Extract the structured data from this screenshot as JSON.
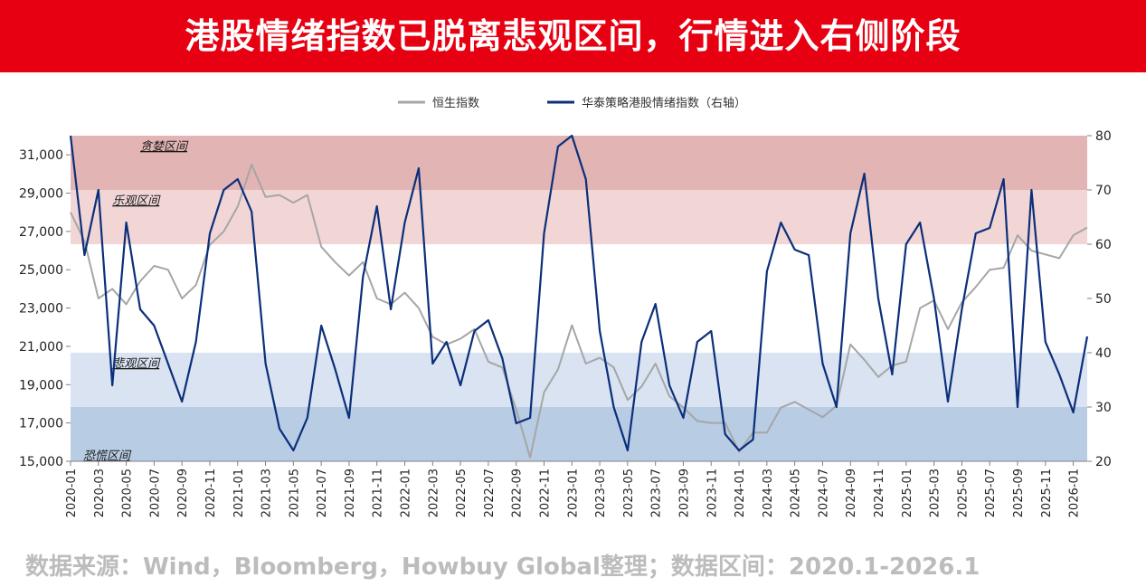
{
  "header": {
    "title": "港股情绪指数已脱离悲观区间，行情进入右侧阶段"
  },
  "footer": {
    "source": "数据来源：Wind，Bloomberg，Howbuy Global整理；数据区间：2020.1-2026.1"
  },
  "colors": {
    "banner": "#e60012",
    "hsi_line": "#a6a6a6",
    "sentiment_line": "#0b2f7a",
    "zone_greed": "#e3b4b4",
    "zone_optimism": "#f2d6d6",
    "zone_neutral": "#ffffff",
    "zone_pessimism": "#d9e3f1",
    "zone_panic": "#b8cce4"
  },
  "chart_data": {
    "type": "line",
    "title": "",
    "legend_position": "top-center",
    "x_type": "month",
    "xlim": [
      "2020-01",
      "2026-02"
    ],
    "x_tick_labels": [
      "2020-01",
      "2020-03",
      "2020-05",
      "2020-07",
      "2020-09",
      "2020-11",
      "2021-01",
      "2021-03",
      "2021-05",
      "2021-07",
      "2021-09",
      "2021-11",
      "2022-01",
      "2022-03",
      "2022-05",
      "2022-07",
      "2022-09",
      "2022-11",
      "2023-01",
      "2023-03",
      "2023-05",
      "2023-07",
      "2023-09",
      "2023-11",
      "2024-01",
      "2024-03",
      "2024-05",
      "2024-07",
      "2024-09",
      "2024-11",
      "2025-01",
      "2025-03",
      "2025-05",
      "2025-07",
      "2025-09",
      "2025-11",
      "2026-01"
    ],
    "y_left": {
      "ylim": [
        15000,
        32000
      ],
      "ticks": [
        15000,
        17000,
        19000,
        21000,
        23000,
        25000,
        27000,
        29000,
        31000
      ],
      "tick_labels": [
        "15,000",
        "17,000",
        "19,000",
        "21,000",
        "23,000",
        "25,000",
        "27,000",
        "29,000",
        "31,000"
      ]
    },
    "y_right": {
      "ylim": [
        20,
        80
      ],
      "ticks": [
        20,
        30,
        40,
        50,
        60,
        70,
        80
      ],
      "tick_labels": [
        "20",
        "30",
        "40",
        "50",
        "60",
        "70",
        "80"
      ]
    },
    "zones": [
      {
        "name": "贪婪区间",
        "from": 70,
        "to": 80
      },
      {
        "name": "乐观区间",
        "from": 60,
        "to": 70
      },
      {
        "name": "",
        "from": 40,
        "to": 60
      },
      {
        "name": "悲观区间",
        "from": 30,
        "to": 40
      },
      {
        "name": "恐慌区间",
        "from": 20,
        "to": 30
      }
    ],
    "zone_label_dates": [
      "2020-06",
      "2020-04",
      "2020-04",
      "2020-01"
    ],
    "series": [
      {
        "name": "恒生指数",
        "axis": "left",
        "points": [
          [
            "2020-01",
            28000
          ],
          [
            "2020-02",
            26500
          ],
          [
            "2020-03",
            23500
          ],
          [
            "2020-04",
            24000
          ],
          [
            "2020-05",
            23200
          ],
          [
            "2020-06",
            24400
          ],
          [
            "2020-07",
            25200
          ],
          [
            "2020-08",
            25000
          ],
          [
            "2020-09",
            23500
          ],
          [
            "2020-10",
            24200
          ],
          [
            "2020-11",
            26300
          ],
          [
            "2020-12",
            27000
          ],
          [
            "2021-01",
            28300
          ],
          [
            "2021-02",
            30500
          ],
          [
            "2021-03",
            28800
          ],
          [
            "2021-04",
            28900
          ],
          [
            "2021-05",
            28500
          ],
          [
            "2021-06",
            28900
          ],
          [
            "2021-07",
            26200
          ],
          [
            "2021-08",
            25400
          ],
          [
            "2021-09",
            24700
          ],
          [
            "2021-10",
            25400
          ],
          [
            "2021-11",
            23500
          ],
          [
            "2021-12",
            23200
          ],
          [
            "2022-01",
            23800
          ],
          [
            "2022-02",
            23000
          ],
          [
            "2022-03",
            21500
          ],
          [
            "2022-04",
            21100
          ],
          [
            "2022-05",
            21400
          ],
          [
            "2022-06",
            21900
          ],
          [
            "2022-07",
            20200
          ],
          [
            "2022-08",
            19900
          ],
          [
            "2022-09",
            17700
          ],
          [
            "2022-10",
            15200
          ],
          [
            "2022-11",
            18600
          ],
          [
            "2022-12",
            19800
          ],
          [
            "2023-01",
            22100
          ],
          [
            "2023-02",
            20100
          ],
          [
            "2023-03",
            20400
          ],
          [
            "2023-04",
            19900
          ],
          [
            "2023-05",
            18200
          ],
          [
            "2023-06",
            18900
          ],
          [
            "2023-07",
            20100
          ],
          [
            "2023-08",
            18400
          ],
          [
            "2023-09",
            17800
          ],
          [
            "2023-10",
            17100
          ],
          [
            "2023-11",
            17000
          ],
          [
            "2023-12",
            17000
          ],
          [
            "2024-01",
            15500
          ],
          [
            "2024-02",
            16500
          ],
          [
            "2024-03",
            16500
          ],
          [
            "2024-04",
            17800
          ],
          [
            "2024-05",
            18100
          ],
          [
            "2024-06",
            17700
          ],
          [
            "2024-07",
            17300
          ],
          [
            "2024-08",
            17900
          ],
          [
            "2024-09",
            21100
          ],
          [
            "2024-10",
            20300
          ],
          [
            "2024-11",
            19400
          ],
          [
            "2024-12",
            20000
          ],
          [
            "2025-01",
            20200
          ],
          [
            "2025-02",
            23000
          ],
          [
            "2025-03",
            23400
          ],
          [
            "2025-04",
            21900
          ],
          [
            "2025-05",
            23300
          ],
          [
            "2025-06",
            24100
          ],
          [
            "2025-07",
            25000
          ],
          [
            "2025-08",
            25100
          ],
          [
            "2025-09",
            26800
          ],
          [
            "2025-10",
            26000
          ],
          [
            "2025-11",
            25800
          ],
          [
            "2025-12",
            25600
          ],
          [
            "2026-01",
            26800
          ],
          [
            "2026-02",
            27200
          ]
        ]
      },
      {
        "name": "华泰策略港股情绪指数（右轴）",
        "axis": "right",
        "points": [
          [
            "2020-01",
            80
          ],
          [
            "2020-02",
            58
          ],
          [
            "2020-03",
            70
          ],
          [
            "2020-04",
            34
          ],
          [
            "2020-05",
            64
          ],
          [
            "2020-06",
            48
          ],
          [
            "2020-07",
            45
          ],
          [
            "2020-08",
            38
          ],
          [
            "2020-09",
            31
          ],
          [
            "2020-10",
            42
          ],
          [
            "2020-11",
            62
          ],
          [
            "2020-12",
            70
          ],
          [
            "2021-01",
            72
          ],
          [
            "2021-02",
            66
          ],
          [
            "2021-03",
            38
          ],
          [
            "2021-04",
            26
          ],
          [
            "2021-05",
            22
          ],
          [
            "2021-06",
            28
          ],
          [
            "2021-07",
            45
          ],
          [
            "2021-08",
            37
          ],
          [
            "2021-09",
            28
          ],
          [
            "2021-10",
            54
          ],
          [
            "2021-11",
            67
          ],
          [
            "2021-12",
            48
          ],
          [
            "2022-01",
            64
          ],
          [
            "2022-02",
            74
          ],
          [
            "2022-03",
            38
          ],
          [
            "2022-04",
            42
          ],
          [
            "2022-05",
            34
          ],
          [
            "2022-06",
            44
          ],
          [
            "2022-07",
            46
          ],
          [
            "2022-08",
            39
          ],
          [
            "2022-09",
            27
          ],
          [
            "2022-10",
            28
          ],
          [
            "2022-11",
            62
          ],
          [
            "2022-12",
            78
          ],
          [
            "2023-01",
            80
          ],
          [
            "2023-02",
            72
          ],
          [
            "2023-03",
            44
          ],
          [
            "2023-04",
            30
          ],
          [
            "2023-05",
            22
          ],
          [
            "2023-06",
            42
          ],
          [
            "2023-07",
            49
          ],
          [
            "2023-08",
            34
          ],
          [
            "2023-09",
            28
          ],
          [
            "2023-10",
            42
          ],
          [
            "2023-11",
            44
          ],
          [
            "2023-12",
            25
          ],
          [
            "2024-01",
            22
          ],
          [
            "2024-02",
            24
          ],
          [
            "2024-03",
            55
          ],
          [
            "2024-04",
            64
          ],
          [
            "2024-05",
            59
          ],
          [
            "2024-06",
            58
          ],
          [
            "2024-07",
            38
          ],
          [
            "2024-08",
            30
          ],
          [
            "2024-09",
            62
          ],
          [
            "2024-10",
            73
          ],
          [
            "2024-11",
            50
          ],
          [
            "2024-12",
            36
          ],
          [
            "2025-01",
            60
          ],
          [
            "2025-02",
            64
          ],
          [
            "2025-03",
            50
          ],
          [
            "2025-04",
            31
          ],
          [
            "2025-05",
            48
          ],
          [
            "2025-06",
            62
          ],
          [
            "2025-07",
            63
          ],
          [
            "2025-08",
            72
          ],
          [
            "2025-09",
            30
          ],
          [
            "2025-10",
            70
          ],
          [
            "2025-11",
            42
          ],
          [
            "2025-12",
            36
          ],
          [
            "2026-01",
            29
          ],
          [
            "2026-02",
            43
          ]
        ]
      }
    ]
  }
}
